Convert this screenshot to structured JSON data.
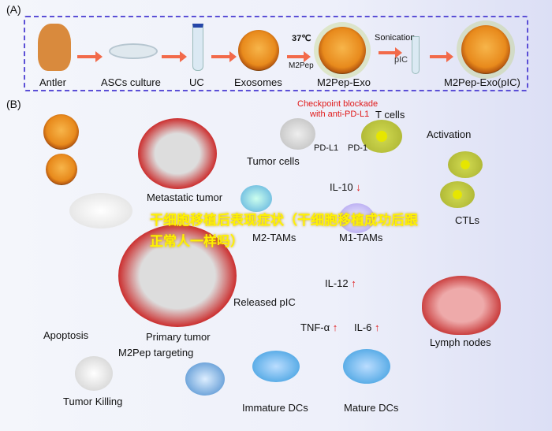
{
  "panel_a": {
    "label": "(A)",
    "steps": [
      "Antler",
      "ASCs culture",
      "UC",
      "Exosomes",
      "M2Pep-Exo",
      "M2Pep-Exo(pIC)"
    ],
    "temp": "37℃",
    "peptide": "M2Pep",
    "sonication": "Sonication",
    "pic": "pIC"
  },
  "panel_b": {
    "label": "(B)",
    "checkpoint_line1": "Checkpoint blockade",
    "checkpoint_line2": "with anti-PD-L1",
    "t_cells": "T cells",
    "pd_l1": "PD-L1",
    "pd_1": "PD-1",
    "tumor_cells": "Tumor cells",
    "activation": "Activation",
    "metastatic_tumor": "Metastatic tumor",
    "il10": "IL-10",
    "m2_tams": "M2-TAMs",
    "m1_tams": "M1-TAMs",
    "ctls": "CTLs",
    "il12": "IL-12",
    "released_pic": "Released pIC",
    "tnf": "TNF-α",
    "il6": "IL-6",
    "primary_tumor": "Primary tumor",
    "apoptosis": "Apoptosis",
    "m2pep_targeting": "M2Pep targeting",
    "lymph_nodes": "Lymph nodes",
    "tumor_killing": "Tumor Killing",
    "immature_dcs": "Immature DCs",
    "mature_dcs": "Mature DCs",
    "up_arrow": "↑",
    "down_arrow": "↓"
  },
  "watermark": "干细胞移植后表现症状（干细胞移植成功后跟正常人一样吗）",
  "colors": {
    "dashed_border": "#5b4fd6",
    "process_arrow": "#f26a4a",
    "checkpoint_text": "#e01919",
    "watermark": "#fff200"
  }
}
